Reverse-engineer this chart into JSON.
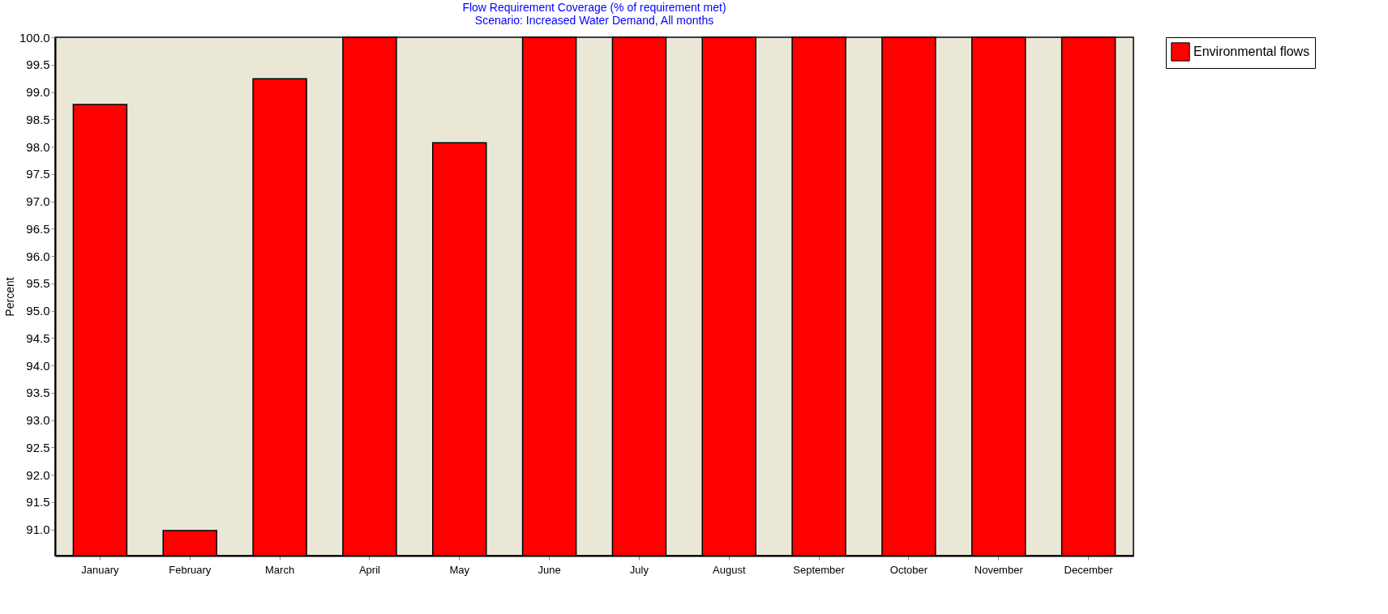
{
  "chart_data": {
    "type": "bar",
    "title": "Flow  Requirement Coverage (% of requirement met)",
    "subtitle": "Scenario: Increased Water Demand,  All months",
    "ylabel": "Percent",
    "categories": [
      "January",
      "February",
      "March",
      "April",
      "May",
      "June",
      "July",
      "August",
      "September",
      "October",
      "November",
      "December"
    ],
    "series": [
      {
        "name": "Environmental flows",
        "color": "#ff0000",
        "values": [
          98.77,
          90.98,
          99.24,
          100,
          98.07,
          100,
          100,
          100,
          100,
          100,
          100,
          100
        ]
      }
    ],
    "ylim": [
      90.52,
      100
    ],
    "yticks": [
      {
        "value": 91,
        "label": "91.0"
      },
      {
        "value": 91.5,
        "label": "91.5"
      },
      {
        "value": 92,
        "label": "92.0"
      },
      {
        "value": 92.5,
        "label": "92.5"
      },
      {
        "value": 93,
        "label": "93.0"
      },
      {
        "value": 93.5,
        "label": "93.5"
      },
      {
        "value": 94,
        "label": "94.0"
      },
      {
        "value": 94.5,
        "label": "94.5"
      },
      {
        "value": 95,
        "label": "95.0"
      },
      {
        "value": 95.5,
        "label": "95.5"
      },
      {
        "value": 96,
        "label": "96.0"
      },
      {
        "value": 96.5,
        "label": "96.5"
      },
      {
        "value": 97,
        "label": "97.0"
      },
      {
        "value": 97.5,
        "label": "97.5"
      },
      {
        "value": 98,
        "label": "98.0"
      },
      {
        "value": 98.5,
        "label": "98.5"
      },
      {
        "value": 99,
        "label": "99.0"
      },
      {
        "value": 99.5,
        "label": "99.5"
      },
      {
        "value": 100,
        "label": "100.0"
      }
    ],
    "legend": "top right",
    "grid": false
  }
}
